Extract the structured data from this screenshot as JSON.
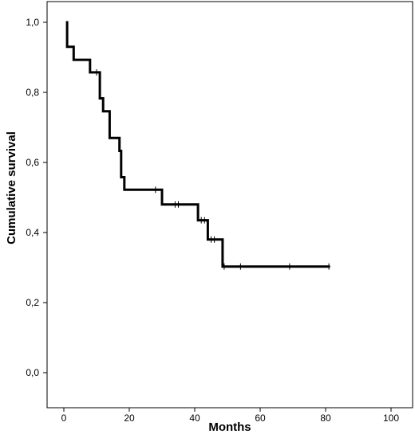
{
  "chart_data": {
    "type": "line",
    "subtype": "kaplan-meier-survival",
    "xlabel": "Months",
    "ylabel": "Cumulative survival",
    "xlim": [
      0,
      100
    ],
    "ylim": [
      0,
      1.0
    ],
    "x_ticks": [
      0,
      20,
      40,
      60,
      80,
      100
    ],
    "y_ticks": [
      0.0,
      0.2,
      0.4,
      0.6,
      0.8,
      1.0
    ],
    "x_tick_labels": [
      "0",
      "20",
      "40",
      "60",
      "80",
      "100"
    ],
    "y_tick_labels": [
      "0,0",
      "0,2",
      "0,4",
      "0,6",
      "0,8",
      "1,0"
    ],
    "grid": false,
    "series": [
      {
        "steps": [
          {
            "x": 1,
            "y": 1.0
          },
          {
            "x": 1,
            "y": 0.93
          },
          {
            "x": 3,
            "y": 0.93
          },
          {
            "x": 3,
            "y": 0.893
          },
          {
            "x": 8,
            "y": 0.893
          },
          {
            "x": 8,
            "y": 0.857
          },
          {
            "x": 11,
            "y": 0.857
          },
          {
            "x": 11,
            "y": 0.783
          },
          {
            "x": 12,
            "y": 0.783
          },
          {
            "x": 12,
            "y": 0.746
          },
          {
            "x": 14,
            "y": 0.746
          },
          {
            "x": 14,
            "y": 0.67
          },
          {
            "x": 17,
            "y": 0.67
          },
          {
            "x": 17,
            "y": 0.633
          },
          {
            "x": 17.5,
            "y": 0.633
          },
          {
            "x": 17.5,
            "y": 0.558
          },
          {
            "x": 18.5,
            "y": 0.558
          },
          {
            "x": 18.5,
            "y": 0.522
          },
          {
            "x": 30,
            "y": 0.522
          },
          {
            "x": 30,
            "y": 0.48
          },
          {
            "x": 41,
            "y": 0.48
          },
          {
            "x": 41,
            "y": 0.435
          },
          {
            "x": 44,
            "y": 0.435
          },
          {
            "x": 44,
            "y": 0.38
          },
          {
            "x": 48.5,
            "y": 0.38
          },
          {
            "x": 48.5,
            "y": 0.303
          },
          {
            "x": 81,
            "y": 0.303
          }
        ],
        "censored": [
          {
            "x": 10,
            "y": 0.857
          },
          {
            "x": 28,
            "y": 0.522
          },
          {
            "x": 34,
            "y": 0.48
          },
          {
            "x": 35,
            "y": 0.48
          },
          {
            "x": 42,
            "y": 0.435
          },
          {
            "x": 43,
            "y": 0.435
          },
          {
            "x": 45,
            "y": 0.38
          },
          {
            "x": 46,
            "y": 0.38
          },
          {
            "x": 49,
            "y": 0.303
          },
          {
            "x": 54,
            "y": 0.303
          },
          {
            "x": 69,
            "y": 0.303
          },
          {
            "x": 81,
            "y": 0.303
          }
        ]
      }
    ]
  }
}
